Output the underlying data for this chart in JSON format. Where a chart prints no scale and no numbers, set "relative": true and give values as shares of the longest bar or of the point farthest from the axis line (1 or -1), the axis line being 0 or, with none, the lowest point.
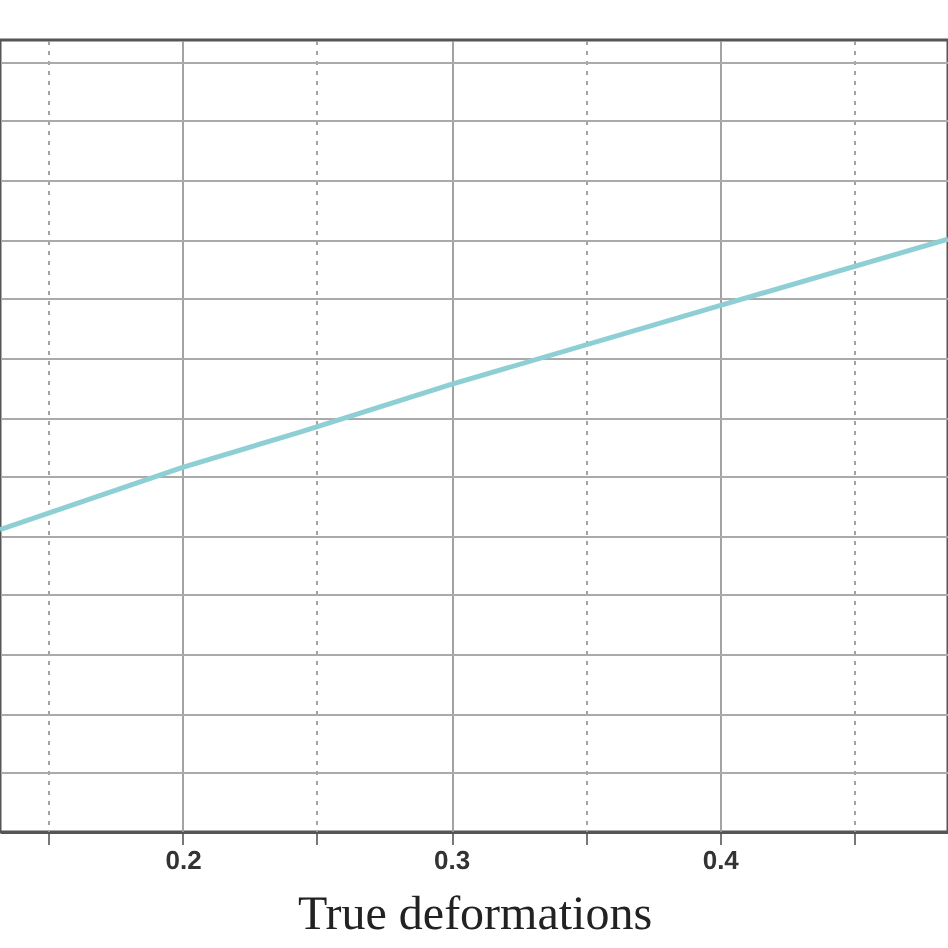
{
  "chart_data": {
    "type": "line",
    "xlabel": "True deformations",
    "relative": true,
    "x": [
      0.132,
      0.2,
      0.244,
      0.3,
      0.4,
      0.485
    ],
    "series": [
      {
        "color": "#8ecfd6",
        "values": [
          0.51,
          0.615,
          0.675,
          0.755,
          0.888,
          1
        ]
      }
    ],
    "xlim": [
      0.132,
      0.485
    ],
    "xticks": [
      {
        "value": 0.15,
        "label": null
      },
      0.2,
      {
        "value": 0.25,
        "label": null
      },
      0.3,
      {
        "value": 0.35,
        "label": null
      },
      0.4,
      {
        "value": 0.45,
        "label": null
      }
    ],
    "grid": true,
    "tick_labels": "x",
    "marker": "none",
    "line_style": "solid"
  }
}
